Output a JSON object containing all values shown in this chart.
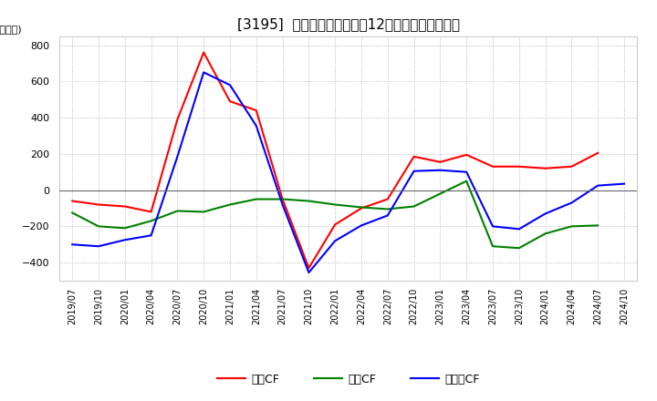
{
  "title": "[㈙3195㈙] キャッシュフローの12か月移動合計の推移",
  "title_text": "[3195]  キャッシュフローの12か月移動合計の推移",
  "ylabel": "(百万円)",
  "ylim": [
    -500,
    850
  ],
  "yticks": [
    -400,
    -200,
    0,
    200,
    400,
    600,
    800
  ],
  "dates": [
    "2019/07",
    "2019/10",
    "2020/01",
    "2020/04",
    "2020/07",
    "2020/10",
    "2021/01",
    "2021/04",
    "2021/07",
    "2021/10",
    "2022/01",
    "2022/04",
    "2022/07",
    "2022/10",
    "2023/01",
    "2023/04",
    "2023/07",
    "2023/10",
    "2024/01",
    "2024/04",
    "2024/07",
    "2024/10"
  ],
  "operating_cf": [
    -60,
    -80,
    -90,
    -120,
    390,
    760,
    490,
    440,
    -50,
    -430,
    -190,
    -100,
    -50,
    185,
    155,
    195,
    130,
    130,
    120,
    130,
    205,
    null
  ],
  "investing_cf": [
    -125,
    -200,
    -210,
    -170,
    -115,
    -120,
    -80,
    -50,
    -50,
    -60,
    -80,
    -95,
    -105,
    -90,
    -20,
    50,
    -310,
    -320,
    -240,
    -200,
    -195,
    null
  ],
  "free_cf": [
    -300,
    -310,
    -275,
    -250,
    185,
    650,
    580,
    355,
    -80,
    -455,
    -280,
    -195,
    -140,
    105,
    110,
    100,
    -200,
    -215,
    -130,
    -70,
    25,
    35
  ],
  "operating_color": "#ff0000",
  "investing_color": "#008000",
  "free_cf_color": "#0000ff",
  "grid_color": "#aaaaaa",
  "grid_style": "dotted",
  "background_color": "#ffffff",
  "legend_labels": [
    "営業CF",
    "投資CF",
    "フリーCF"
  ]
}
